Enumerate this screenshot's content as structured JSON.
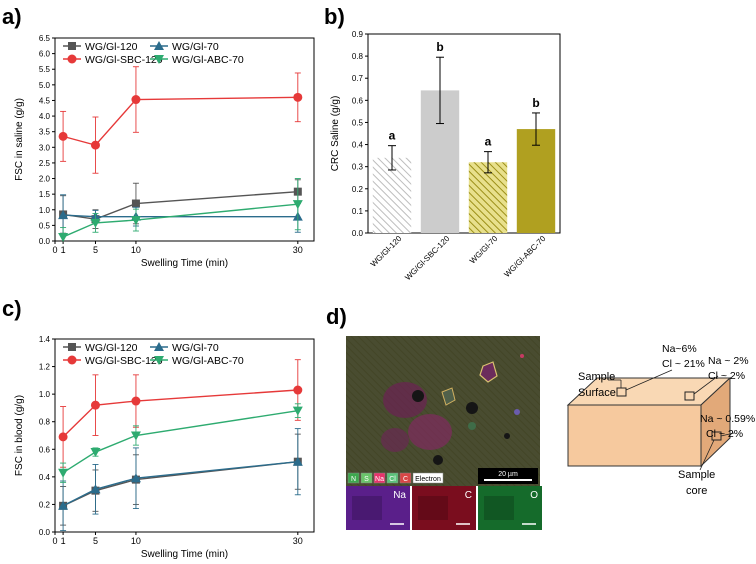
{
  "colors": {
    "grey": "#555555",
    "red": "#e63939",
    "blue": "#2b6c8c",
    "green": "#2eab70",
    "bar_light": "#cccccc",
    "bar_olive": "#b0a020",
    "box_face": "#f6c99e",
    "box_top": "#f9d8b4",
    "box_side": "#e2a979"
  },
  "chart_data": [
    {
      "panel_label": "a)",
      "type": "line",
      "xlabel": "Swelling Time (min)",
      "ylabel": "FSC in saline (g/g)",
      "xlim": [
        0,
        32
      ],
      "ylim": [
        0,
        6.5
      ],
      "xticks": [
        0,
        1,
        5,
        10,
        30
      ],
      "yticks": [
        0.0,
        0.5,
        1.0,
        1.5,
        2.0,
        2.5,
        3.0,
        3.5,
        4.0,
        4.5,
        5.0,
        5.5,
        6.0,
        6.5
      ],
      "x": [
        1,
        5,
        10,
        30
      ],
      "legend": "top-left, two columns",
      "series": [
        {
          "name": "WG/Gl-120",
          "color": "#555555",
          "marker": "square",
          "values": [
            0.85,
            0.7,
            1.2,
            1.58
          ],
          "errors": [
            0.6,
            0.3,
            0.65,
            0.38
          ]
        },
        {
          "name": "WG/Gl-70",
          "color": "#2b6c8c",
          "marker": "triangle-up",
          "values": [
            0.83,
            0.78,
            0.78,
            0.78
          ],
          "errors": [
            0.65,
            0.2,
            0.3,
            0.5
          ]
        },
        {
          "name": "WG/Gl-SBC-120",
          "color": "#e63939",
          "marker": "circle",
          "values": [
            3.35,
            3.07,
            4.53,
            4.6
          ],
          "errors": [
            0.8,
            0.9,
            1.05,
            0.78
          ]
        },
        {
          "name": "WG/Gl-ABC-70",
          "color": "#2eab70",
          "marker": "triangle-down",
          "values": [
            0.13,
            0.58,
            0.67,
            1.18
          ],
          "errors": [
            0.3,
            0.3,
            0.35,
            0.82
          ]
        }
      ]
    },
    {
      "panel_label": "b)",
      "type": "bar",
      "ylabel": "CRC Saline (g/g)",
      "ylim": [
        0,
        0.9
      ],
      "yticks": [
        0.0,
        0.1,
        0.2,
        0.3,
        0.4,
        0.5,
        0.6,
        0.7,
        0.8,
        0.9
      ],
      "categories": [
        "WG/Gl-120",
        "WG/Gl-SBC-120",
        "WG/Gl-70",
        "WG/Gl-ABC-70"
      ],
      "values": [
        0.34,
        0.645,
        0.32,
        0.47
      ],
      "errors": [
        0.055,
        0.15,
        0.048,
        0.073
      ],
      "letters": [
        "a",
        "b",
        "a",
        "b"
      ],
      "fills": [
        "hatch-light",
        "solid-light",
        "hatch-olive",
        "solid-olive"
      ]
    },
    {
      "panel_label": "c)",
      "type": "line",
      "xlabel": "Swelling Time (min)",
      "ylabel": "FSC in blood (g/g)",
      "xlim": [
        0,
        32
      ],
      "ylim": [
        0,
        1.4
      ],
      "xticks": [
        0,
        1,
        5,
        10,
        30
      ],
      "yticks": [
        0.0,
        0.2,
        0.4,
        0.6,
        0.8,
        1.0,
        1.2,
        1.4
      ],
      "x": [
        1,
        5,
        10,
        30
      ],
      "legend": "top-left, two columns",
      "series": [
        {
          "name": "WG/Gl-120",
          "color": "#555555",
          "marker": "square",
          "values": [
            0.19,
            0.3,
            0.38,
            0.51
          ],
          "errors": [
            0.14,
            0.15,
            0.18,
            0.2
          ]
        },
        {
          "name": "WG/Gl-70",
          "color": "#2b6c8c",
          "marker": "triangle-up",
          "values": [
            0.19,
            0.31,
            0.39,
            0.51
          ],
          "errors": [
            0.18,
            0.18,
            0.22,
            0.24
          ]
        },
        {
          "name": "WG/Gl-SBC-120",
          "color": "#e63939",
          "marker": "circle",
          "values": [
            0.69,
            0.92,
            0.95,
            1.03
          ],
          "errors": [
            0.22,
            0.22,
            0.19,
            0.22
          ]
        },
        {
          "name": "WG/Gl-ABC-70",
          "color": "#2eab70",
          "marker": "triangle-down",
          "values": [
            0.43,
            0.58,
            0.7,
            0.88
          ],
          "errors": [
            0.07,
            0.03,
            0.07,
            0.05
          ]
        }
      ]
    }
  ],
  "panel_d": {
    "label": "d)",
    "legend_boxes": [
      {
        "text": "N",
        "color": "#3da84e"
      },
      {
        "text": "S",
        "color": "#6ac46a"
      },
      {
        "text": "Na",
        "color": "#e7336b"
      },
      {
        "text": "Cl",
        "color": "#5bc27a"
      },
      {
        "text": "C",
        "color": "#d94646"
      },
      {
        "text": "Electron",
        "color": "#ffffff"
      }
    ],
    "scale_bar": "20 µm",
    "maps": [
      {
        "label": "Na",
        "color": "#5a1f8a"
      },
      {
        "label": "C",
        "color": "#7a0d1e"
      },
      {
        "label": "O",
        "color": "#156b2b"
      }
    ],
    "box_labels": {
      "surface": [
        "Sample",
        "Surface"
      ],
      "top": [
        "Na~6%",
        "Cl ~ 21%"
      ],
      "middle": [
        "Na ~ 2%",
        "Cl ~ 2%"
      ],
      "side": [
        "Na ~ 0.59%",
        "Cl ~ 2%"
      ],
      "core": [
        "Sample",
        "core"
      ]
    }
  }
}
